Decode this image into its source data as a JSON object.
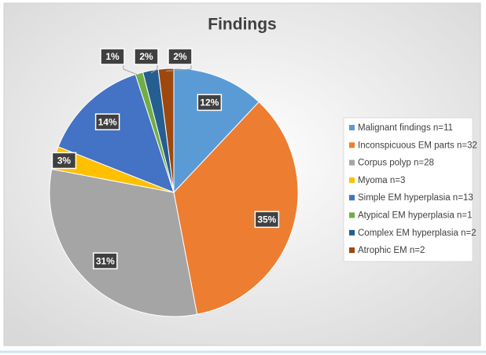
{
  "chart_data": {
    "type": "pie",
    "title": "Findings",
    "categories": [
      "Malignant findings n=11",
      "Inconspicuous EM parts n=32",
      "Corpus polyp n=28",
      "Myoma n=3",
      "Simple EM hyperplasia n=13",
      "Atypical EM hyperplasia n=1",
      "Complex EM hyperplasia n=2",
      "Atrophic EM n=2"
    ],
    "values": [
      12,
      35,
      31,
      3,
      14,
      1,
      2,
      2
    ],
    "value_labels": [
      "12%",
      "35%",
      "31%",
      "3%",
      "14%",
      "1%",
      "2%",
      "2%"
    ],
    "colors": [
      "#5b9bd5",
      "#ed7d31",
      "#a5a5a5",
      "#ffc000",
      "#4472c4",
      "#70ad47",
      "#255e91",
      "#9e480e"
    ],
    "legend": "right"
  }
}
